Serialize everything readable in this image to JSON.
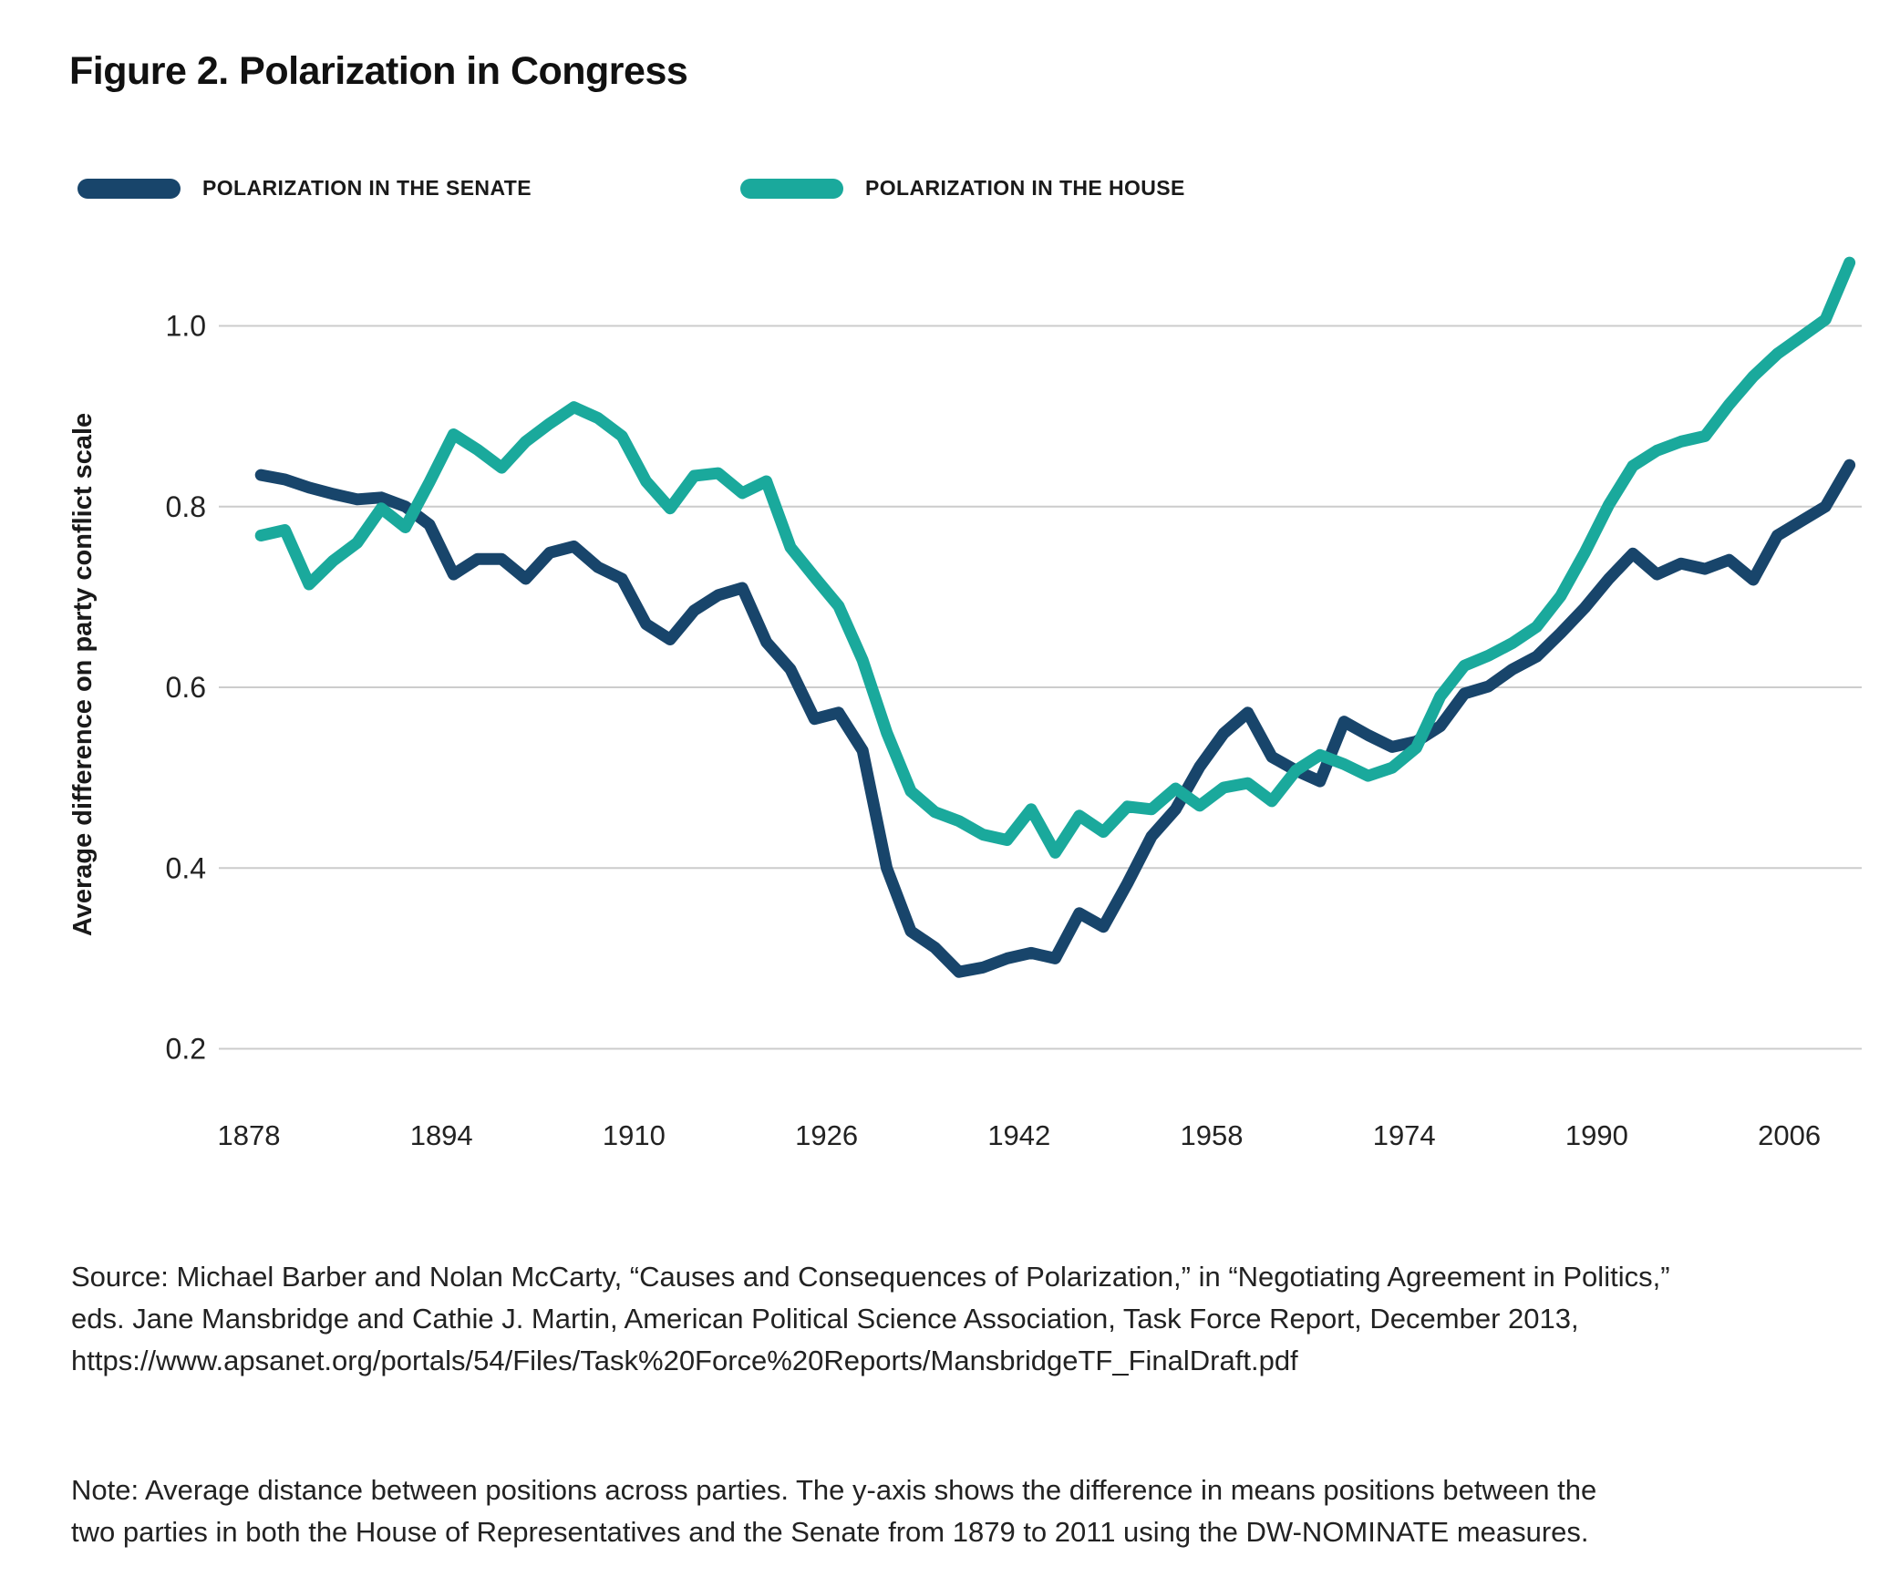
{
  "figure": {
    "title": "Figure 2. Polarization in Congress"
  },
  "legend": [
    {
      "label": "POLARIZATION IN THE SENATE",
      "color": "#18456B"
    },
    {
      "label": "POLARIZATION IN THE HOUSE",
      "color": "#1AA99C"
    }
  ],
  "chart_data": {
    "type": "line",
    "title": "Figure 2. Polarization in Congress",
    "xlabel": "",
    "ylabel": "Average difference on party conflict scale",
    "xlim": [
      1876,
      2012
    ],
    "ylim": [
      0.15,
      1.1
    ],
    "grid": "horizontal-only",
    "grid_color": "#cccccc",
    "axis_text_color": "#222222",
    "legend_position": "top-left",
    "x_ticks": [
      1878,
      1894,
      1910,
      1926,
      1942,
      1958,
      1974,
      1990,
      2006
    ],
    "y_ticks": [
      "1.0",
      "0.8",
      "0.6",
      "0.4",
      "0.2"
    ],
    "x": [
      1879,
      1881,
      1883,
      1885,
      1887,
      1889,
      1891,
      1893,
      1895,
      1897,
      1899,
      1901,
      1903,
      1905,
      1907,
      1909,
      1911,
      1913,
      1915,
      1917,
      1919,
      1921,
      1923,
      1925,
      1927,
      1929,
      1931,
      1933,
      1935,
      1937,
      1939,
      1941,
      1943,
      1945,
      1947,
      1949,
      1951,
      1953,
      1955,
      1957,
      1959,
      1961,
      1963,
      1965,
      1967,
      1969,
      1971,
      1973,
      1975,
      1977,
      1979,
      1981,
      1983,
      1985,
      1987,
      1989,
      1991,
      1993,
      1995,
      1997,
      1999,
      2001,
      2003,
      2005,
      2007,
      2009,
      2011
    ],
    "series": [
      {
        "name": "Polarization in the Senate",
        "color": "#18456B",
        "values": [
          0.835,
          0.83,
          0.821,
          0.814,
          0.808,
          0.81,
          0.8,
          0.78,
          0.725,
          0.742,
          0.742,
          0.72,
          0.749,
          0.756,
          0.733,
          0.72,
          0.67,
          0.653,
          0.685,
          0.702,
          0.71,
          0.65,
          0.62,
          0.565,
          0.572,
          0.53,
          0.4,
          0.33,
          0.312,
          0.285,
          0.29,
          0.3,
          0.306,
          0.3,
          0.35,
          0.335,
          0.383,
          0.435,
          0.465,
          0.512,
          0.549,
          0.572,
          0.523,
          0.508,
          0.496,
          0.562,
          0.547,
          0.534,
          0.54,
          0.557,
          0.593,
          0.601,
          0.62,
          0.634,
          0.66,
          0.688,
          0.72,
          0.748,
          0.725,
          0.737,
          0.731,
          0.741,
          0.719,
          0.768,
          0.784,
          0.8,
          0.846
        ]
      },
      {
        "name": "Polarization in the House",
        "color": "#1AA99C",
        "values": [
          0.768,
          0.774,
          0.714,
          0.74,
          0.76,
          0.798,
          0.777,
          0.827,
          0.88,
          0.863,
          0.843,
          0.872,
          0.892,
          0.91,
          0.898,
          0.878,
          0.828,
          0.798,
          0.834,
          0.837,
          0.815,
          0.828,
          0.755,
          0.722,
          0.69,
          0.63,
          0.55,
          0.485,
          0.462,
          0.452,
          0.437,
          0.431,
          0.465,
          0.417,
          0.458,
          0.44,
          0.468,
          0.465,
          0.488,
          0.469,
          0.489,
          0.494,
          0.474,
          0.508,
          0.525,
          0.515,
          0.502,
          0.511,
          0.533,
          0.59,
          0.624,
          0.635,
          0.649,
          0.667,
          0.701,
          0.749,
          0.802,
          0.845,
          0.862,
          0.872,
          0.878,
          0.913,
          0.944,
          0.969,
          0.988,
          1.007,
          1.07
        ]
      }
    ]
  },
  "source": {
    "lines": [
      "Source: Michael Barber and Nolan McCarty, “Causes and Consequences of Polarization,” in “Negotiating Agreement in Politics,”",
      "eds. Jane Mansbridge and Cathie J. Martin, American Political Science Association, Task Force Report, December 2013,",
      "https://www.apsanet.org/portals/54/Files/Task%20Force%20Reports/MansbridgeTF_FinalDraft.pdf"
    ]
  },
  "note": {
    "lines": [
      "Note: Average distance between positions across parties. The y-axis shows the difference in means positions between the",
      "two parties in both the House of Representatives and the Senate from 1879 to 2011 using the DW-NOMINATE measures."
    ]
  }
}
